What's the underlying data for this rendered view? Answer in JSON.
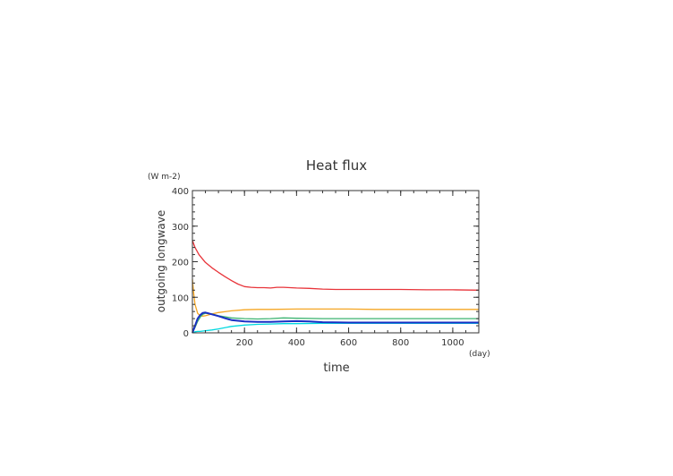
{
  "chart_data": {
    "type": "line",
    "title": "Heat flux",
    "xlabel": "time",
    "x_unit": "(day)",
    "ylabel": "outgoing longwave",
    "y_unit": "(W m-2)",
    "xlim": [
      0,
      1100
    ],
    "ylim": [
      0,
      400
    ],
    "x_ticks": [
      200,
      400,
      600,
      800,
      1000
    ],
    "y_ticks": [
      0,
      100,
      200,
      300,
      400
    ],
    "x_minor_step": 50,
    "y_minor_step": 20,
    "grid": false,
    "legend": "none",
    "series": [
      {
        "color": "#e8343a",
        "x": [
          0,
          10,
          25,
          50,
          75,
          100,
          125,
          150,
          175,
          200,
          225,
          250,
          275,
          300,
          325,
          350,
          375,
          400,
          450,
          500,
          550,
          600,
          700,
          800,
          900,
          1000,
          1100
        ],
        "y": [
          260,
          240,
          220,
          198,
          183,
          170,
          158,
          147,
          137,
          130,
          128,
          127,
          127,
          126,
          128,
          128,
          127,
          126,
          125,
          123,
          122,
          122,
          122,
          122,
          121,
          121,
          120
        ]
      },
      {
        "color": "#f5a623",
        "x": [
          0,
          5,
          10,
          20,
          30,
          40,
          50,
          75,
          100,
          150,
          200,
          250,
          300,
          400,
          500,
          600,
          700,
          800,
          900,
          1000,
          1100
        ],
        "y": [
          150,
          110,
          80,
          55,
          48,
          47,
          48,
          53,
          57,
          62,
          65,
          66,
          66,
          67,
          67,
          67,
          66,
          66,
          66,
          66,
          66
        ]
      },
      {
        "color": "#3cb371",
        "x": [
          0,
          10,
          20,
          30,
          40,
          50,
          75,
          100,
          150,
          200,
          250,
          300,
          350,
          400,
          500,
          600,
          700,
          800,
          900,
          1000,
          1100
        ],
        "y": [
          0,
          15,
          32,
          44,
          52,
          55,
          53,
          48,
          42,
          40,
          39,
          40,
          42,
          41,
          40,
          40,
          40,
          40,
          40,
          40,
          40
        ]
      },
      {
        "color": "#00d8e0",
        "x": [
          0,
          10,
          20,
          30,
          40,
          50,
          75,
          100,
          150,
          200,
          250,
          300,
          350,
          400,
          500,
          600,
          700,
          800,
          900,
          1000,
          1100
        ],
        "y": [
          0,
          3,
          4,
          4,
          5,
          6,
          8,
          11,
          18,
          22,
          24,
          25,
          26,
          26,
          27,
          27,
          27,
          27,
          27,
          27,
          27
        ]
      },
      {
        "color": "#1a2fc4",
        "x": [
          0,
          10,
          20,
          30,
          40,
          50,
          60,
          75,
          100,
          125,
          150,
          200,
          250,
          300,
          350,
          400,
          450,
          500,
          600,
          700,
          800,
          900,
          1000,
          1100
        ],
        "y": [
          0,
          20,
          40,
          50,
          56,
          57,
          55,
          52,
          47,
          41,
          36,
          32,
          31,
          31,
          32,
          33,
          32,
          30,
          29,
          29,
          29,
          29,
          29,
          29
        ]
      }
    ]
  }
}
